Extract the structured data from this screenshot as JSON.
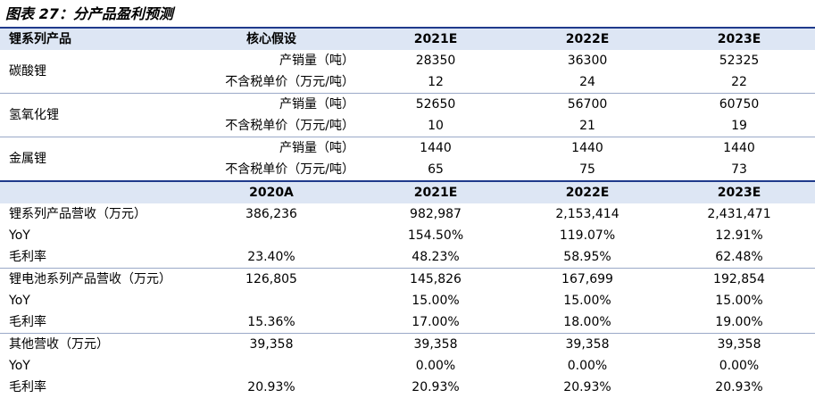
{
  "title": "图表 27：分产品盈利预测",
  "header1": {
    "c0": "锂系列产品",
    "c1": "核心假设",
    "years": [
      "2021E",
      "2022E",
      "2023E"
    ]
  },
  "products": [
    {
      "name": "碳酸锂",
      "rows": [
        {
          "label": "产销量（吨）",
          "values": [
            "28350",
            "36300",
            "52325"
          ]
        },
        {
          "label": "不含税单价（万元/吨）",
          "values": [
            "12",
            "24",
            "22"
          ]
        }
      ]
    },
    {
      "name": "氢氧化锂",
      "rows": [
        {
          "label": "产销量（吨）",
          "values": [
            "52650",
            "56700",
            "60750"
          ]
        },
        {
          "label": "不含税单价（万元/吨）",
          "values": [
            "10",
            "21",
            "19"
          ]
        }
      ]
    },
    {
      "name": "金属锂",
      "rows": [
        {
          "label": "产销量（吨）",
          "values": [
            "1440",
            "1440",
            "1440"
          ]
        },
        {
          "label": "不含税单价（万元/吨）",
          "values": [
            "65",
            "75",
            "73"
          ]
        }
      ]
    }
  ],
  "header2": {
    "years": [
      "2020A",
      "2021E",
      "2022E",
      "2023E"
    ]
  },
  "segments": [
    {
      "rows": [
        {
          "label": "锂系列产品营收（万元）",
          "values": [
            "386,236",
            "982,987",
            "2,153,414",
            "2,431,471"
          ]
        },
        {
          "label": "YoY",
          "values": [
            "",
            "154.50%",
            "119.07%",
            "12.91%"
          ]
        },
        {
          "label": "毛利率",
          "values": [
            "23.40%",
            "48.23%",
            "58.95%",
            "62.48%"
          ]
        }
      ]
    },
    {
      "rows": [
        {
          "label": "锂电池系列产品营收（万元）",
          "values": [
            "126,805",
            "145,826",
            "167,699",
            "192,854"
          ]
        },
        {
          "label": "YoY",
          "values": [
            "",
            "15.00%",
            "15.00%",
            "15.00%"
          ]
        },
        {
          "label": "毛利率",
          "values": [
            "15.36%",
            "17.00%",
            "18.00%",
            "19.00%"
          ]
        }
      ]
    },
    {
      "rows": [
        {
          "label": "其他营收（万元）",
          "values": [
            "39,358",
            "39,358",
            "39,358",
            "39,358"
          ]
        },
        {
          "label": "YoY",
          "values": [
            "",
            "0.00%",
            "0.00%",
            "0.00%"
          ]
        },
        {
          "label": "毛利率",
          "values": [
            "20.93%",
            "20.93%",
            "20.93%",
            "20.93%"
          ]
        }
      ]
    }
  ]
}
